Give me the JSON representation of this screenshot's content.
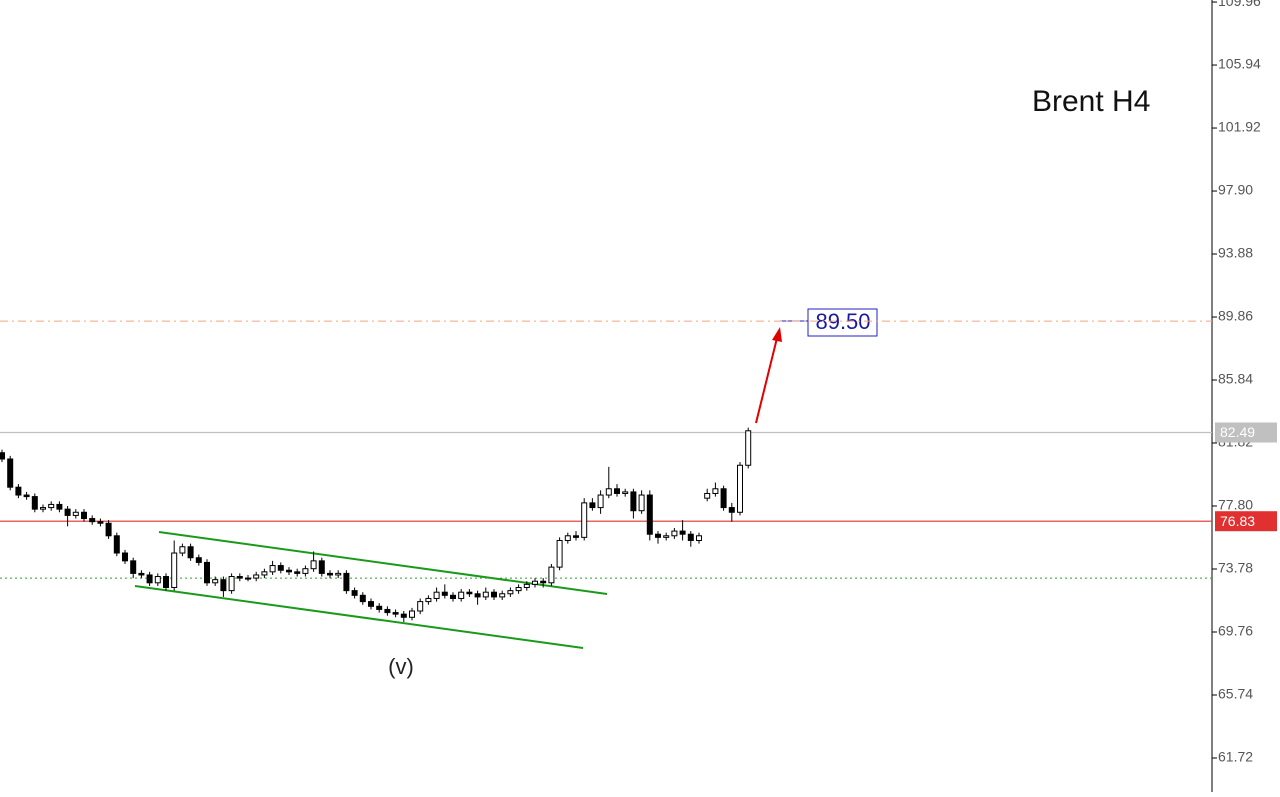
{
  "chart_data": {
    "type": "candlestick",
    "title": "Brent H4",
    "wave_label": "(v)",
    "target_label": "89.50",
    "open": [
      81.2,
      80.8,
      79.0,
      78.5,
      78.4,
      77.6,
      77.7,
      77.9,
      77.6,
      77.2,
      77.4,
      77.0,
      76.8,
      76.7,
      75.9,
      74.8,
      74.3,
      73.5,
      73.4,
      72.9,
      73.3,
      72.6,
      74.8,
      75.2,
      74.5,
      74.2,
      72.9,
      73.1,
      72.4,
      73.3,
      73.2,
      73.2,
      73.4,
      73.6,
      74.0,
      73.7,
      73.6,
      73.5,
      73.8,
      74.3,
      73.5,
      73.4,
      73.5,
      72.4,
      72.1,
      71.7,
      71.4,
      71.2,
      71.0,
      70.9,
      70.7,
      71.1,
      71.7,
      71.9,
      72.3,
      72.1,
      71.9,
      72.3,
      72.2,
      72.0,
      72.3,
      72.0,
      72.2,
      72.4,
      72.6,
      72.8,
      73.0,
      72.9,
      73.9,
      75.6,
      75.9,
      75.8,
      78.0,
      77.7,
      78.5,
      78.9,
      78.6,
      78.7,
      77.5,
      78.5,
      76.0,
      75.8,
      75.9,
      76.2,
      76.0,
      75.6,
      78.3,
      78.6,
      78.9,
      77.7,
      77.4,
      80.4
    ],
    "high": [
      81.4,
      81.0,
      79.2,
      78.7,
      78.6,
      77.9,
      78.1,
      78.1,
      77.8,
      77.6,
      77.6,
      77.2,
      77.0,
      76.9,
      76.1,
      75.0,
      74.5,
      73.7,
      73.6,
      73.5,
      73.5,
      75.6,
      75.4,
      75.4,
      74.7,
      74.4,
      73.3,
      73.3,
      73.5,
      73.5,
      73.4,
      73.6,
      73.8,
      74.3,
      74.2,
      73.9,
      73.8,
      74.0,
      74.9,
      74.5,
      73.7,
      73.7,
      73.7,
      72.6,
      72.3,
      71.9,
      71.6,
      71.4,
      71.2,
      71.1,
      71.3,
      71.9,
      72.1,
      72.6,
      72.8,
      72.3,
      72.5,
      72.5,
      72.4,
      72.6,
      72.5,
      72.4,
      72.6,
      72.8,
      73.0,
      73.2,
      73.2,
      74.1,
      75.8,
      76.1,
      76.2,
      78.3,
      78.3,
      78.8,
      80.3,
      79.2,
      78.9,
      78.9,
      78.8,
      78.8,
      76.2,
      76.1,
      76.4,
      76.9,
      76.2,
      76.1,
      78.9,
      79.3,
      79.1,
      78.0,
      80.6,
      82.8
    ],
    "low": [
      80.6,
      78.8,
      78.3,
      78.2,
      77.4,
      77.4,
      77.5,
      77.4,
      76.5,
      77.0,
      76.8,
      76.6,
      76.5,
      75.7,
      74.6,
      74.1,
      73.2,
      73.2,
      72.7,
      72.7,
      72.4,
      72.4,
      74.6,
      74.3,
      74.0,
      72.7,
      72.7,
      72.0,
      72.2,
      73.0,
      73.0,
      73.0,
      73.2,
      73.4,
      73.5,
      73.4,
      73.3,
      73.3,
      73.6,
      73.3,
      73.2,
      73.2,
      72.2,
      71.9,
      71.5,
      71.2,
      71.0,
      70.8,
      70.7,
      70.4,
      70.5,
      70.9,
      71.5,
      71.7,
      71.9,
      71.7,
      71.7,
      72.0,
      71.5,
      71.8,
      71.8,
      71.8,
      72.0,
      72.2,
      72.4,
      72.6,
      72.6,
      72.7,
      73.7,
      75.4,
      75.6,
      75.6,
      77.5,
      77.3,
      78.3,
      78.4,
      78.4,
      77.0,
      77.3,
      75.6,
      75.4,
      75.6,
      75.7,
      75.6,
      75.2,
      75.4,
      78.1,
      78.4,
      77.5,
      76.8,
      77.2,
      80.2
    ],
    "close": [
      80.8,
      79.0,
      78.5,
      78.4,
      77.6,
      77.7,
      77.9,
      77.6,
      77.2,
      77.4,
      77.0,
      76.8,
      76.7,
      75.9,
      74.8,
      74.3,
      73.5,
      73.4,
      72.9,
      73.3,
      72.6,
      74.8,
      75.2,
      74.5,
      74.2,
      72.9,
      73.1,
      72.4,
      73.3,
      73.2,
      73.2,
      73.4,
      73.6,
      74.0,
      73.7,
      73.6,
      73.5,
      73.8,
      74.3,
      73.5,
      73.4,
      73.5,
      72.4,
      72.1,
      71.7,
      71.4,
      71.2,
      71.0,
      70.9,
      70.7,
      71.1,
      71.7,
      71.9,
      72.3,
      72.1,
      71.9,
      72.3,
      72.2,
      72.0,
      72.3,
      72.0,
      72.2,
      72.4,
      72.6,
      72.8,
      73.0,
      72.9,
      73.9,
      75.6,
      75.9,
      75.8,
      78.0,
      77.7,
      78.5,
      78.9,
      78.6,
      78.7,
      77.5,
      78.5,
      76.0,
      75.8,
      75.9,
      76.2,
      76.0,
      75.6,
      75.9,
      78.6,
      78.9,
      77.7,
      77.4,
      80.4,
      82.6
    ],
    "up_color": "#ffffff",
    "down_color": "#000000",
    "ylim": [
      59.55,
      110.09
    ],
    "yticks": [
      109.96,
      105.94,
      101.92,
      {
        "value": 97.9,
        "label": "97.90"
      },
      93.88,
      89.86,
      85.84,
      81.82,
      {
        "value": 77.8,
        "label": "77.80"
      },
      73.78,
      69.76,
      65.74,
      61.72
    ],
    "levels": [
      {
        "value": 89.6,
        "color": "#f4a582",
        "style": "dashdot"
      },
      {
        "value": 82.49,
        "color": "#c0c0c0",
        "style": "solid",
        "labeled": true
      },
      {
        "value": 76.83,
        "color": "#e03030",
        "style": "solid",
        "labeled": true
      },
      {
        "value": 73.2,
        "color": "#2e9e2e",
        "style": "dotted"
      }
    ]
  }
}
